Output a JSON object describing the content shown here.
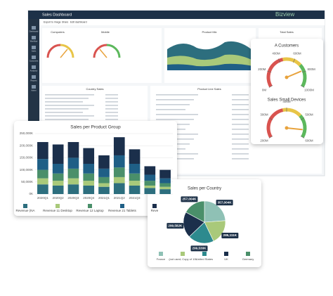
{
  "dashboard": {
    "title": "Sales Dashboard",
    "brand": "Bizview",
    "toolbar": [
      "Export to image",
      "Share",
      "Edit dashboard"
    ],
    "sidebar": [
      "Dashboard",
      "Workflow",
      "Sales",
      "Customers",
      "Analytics",
      "Reports",
      "Admin"
    ],
    "panels": [
      "Computers",
      "Mobile",
      "Product Mix",
      "Total Sales",
      "Country Sales",
      "Product Line Sales"
    ]
  },
  "chart_data": [
    {
      "type": "bar",
      "title": "Sales per Product Group",
      "categories": [
        "2020Q1",
        "2020Q2",
        "2020Q3",
        "2020Q4",
        "2021Q1",
        "2021Q2",
        "2021Q3",
        null,
        null
      ],
      "series": [
        {
          "name": "Revenue (NA",
          "color": "#2d6e7e",
          "values": [
            40000,
            35000,
            40000,
            35000,
            30000,
            45000,
            35000,
            25000,
            20000
          ]
        },
        {
          "name": "Revenue 11 Desktop",
          "color": "#a9c97a",
          "values": [
            25000,
            20000,
            25000,
            20000,
            15000,
            25000,
            20000,
            10000,
            10000
          ]
        },
        {
          "name": "Revenue 12 Laptop",
          "color": "#4a8f6a",
          "values": [
            35000,
            30000,
            40000,
            30000,
            25000,
            40000,
            30000,
            20000,
            15000
          ]
        },
        {
          "name": "Revenue 21 Tablets",
          "color": "#1f5f86",
          "values": [
            45000,
            40000,
            45000,
            40000,
            35000,
            50000,
            40000,
            25000,
            20000
          ]
        },
        {
          "name": "Reve",
          "color": "#1b2f4b",
          "values": [
            70000,
            80000,
            65000,
            65000,
            55000,
            75000,
            60000,
            35000,
            35000
          ]
        }
      ],
      "ylim": [
        0,
        250000
      ],
      "yticks": [
        {
          "value": 0,
          "label": "0K"
        },
        {
          "value": 50000,
          "label": "50,000K"
        },
        {
          "value": 100000,
          "label": "100,000K"
        },
        {
          "value": 150000,
          "label": "150,000K"
        },
        {
          "value": 200000,
          "label": "200,000K"
        },
        {
          "value": 250000,
          "label": "250,000K"
        }
      ],
      "grid": true,
      "stacked": true
    },
    {
      "type": "gauge",
      "title": "A Customers",
      "value": 780,
      "ylim": [
        0,
        1000
      ],
      "yticks": [
        {
          "value": 0,
          "label": "0M"
        },
        {
          "value": 200,
          "label": "200M"
        },
        {
          "value": 400,
          "label": "400M"
        },
        {
          "value": 600,
          "label": "600M"
        },
        {
          "value": 800,
          "label": "800M"
        },
        {
          "value": 1000,
          "label": "1000M"
        }
      ]
    },
    {
      "type": "gauge",
      "title": "Sales Small Devices",
      "value": 560,
      "ylim": [
        200,
        600
      ],
      "yticks": [
        {
          "value": 200,
          "label": "200M"
        },
        {
          "value": 300,
          "label": "300M"
        },
        {
          "value": 400,
          "label": "400M"
        },
        {
          "value": 500,
          "label": "500M"
        },
        {
          "value": 600,
          "label": "600M"
        }
      ]
    },
    {
      "type": "pie",
      "title": "Sales per Country",
      "categories": [
        "France",
        "(not used; Copy of 10t",
        "United States",
        "UK",
        "Germany"
      ],
      "values": [
        357004,
        285111,
        299530,
        299582,
        257004
      ],
      "value_labels": [
        "357,004K",
        "285,111K",
        "299,530K",
        "299,582K",
        "257,004K"
      ],
      "colors": [
        "#8fc1b5",
        "#a9c97a",
        "#2d8a8e",
        "#1b2f4b",
        "#4a8f6a"
      ]
    }
  ]
}
